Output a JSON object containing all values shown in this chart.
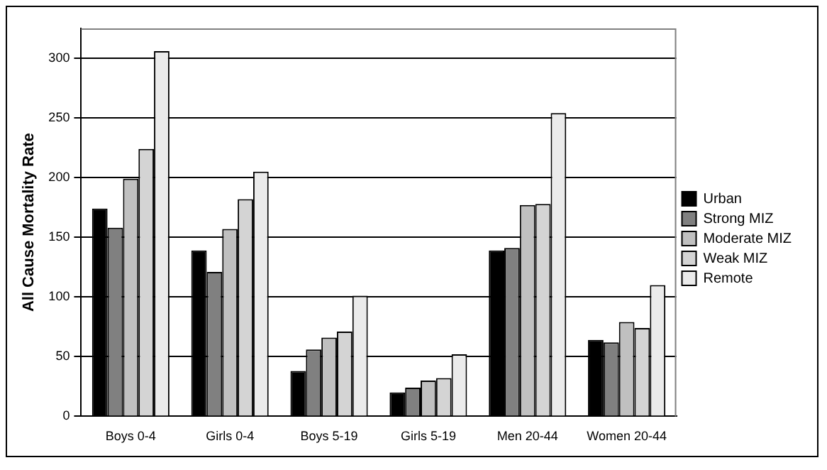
{
  "chart_data": {
    "type": "bar",
    "ylabel": "All Cause Mortality Rate",
    "categories": [
      "Boys 0-4",
      "Girls 0-4",
      "Boys 5-19",
      "Girls 5-19",
      "Men 20-44",
      "Women 20-44"
    ],
    "series": [
      {
        "name": "Urban",
        "color": "#000000",
        "values": [
          174,
          139,
          38,
          20,
          139,
          64
        ]
      },
      {
        "name": "Strong MIZ",
        "color": "#808080",
        "values": [
          158,
          121,
          56,
          24,
          141,
          62
        ]
      },
      {
        "name": "Moderate MIZ",
        "color": "#c0c0c0",
        "values": [
          199,
          157,
          66,
          30,
          177,
          79
        ]
      },
      {
        "name": "Weak MIZ",
        "color": "#d4d4d4",
        "values": [
          224,
          182,
          71,
          32,
          178,
          74
        ]
      },
      {
        "name": "Remote",
        "color": "#ebebeb",
        "values": [
          306,
          205,
          101,
          52,
          254,
          110
        ]
      }
    ],
    "ylim": [
      0,
      325
    ],
    "yticks": [
      0,
      50,
      100,
      150,
      200,
      250,
      300
    ],
    "grid": "y",
    "legend": "right"
  }
}
